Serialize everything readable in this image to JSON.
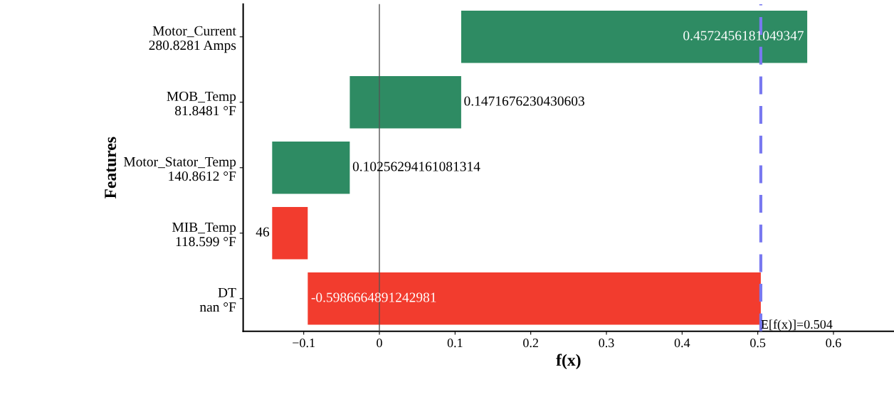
{
  "chart_data": {
    "type": "bar",
    "orientation": "horizontal",
    "xlabel": "f(x)",
    "ylabel": "Features",
    "categories": [
      "Motor_Current\n280.8281 Amps",
      "MOB_Temp\n81.8481 °F",
      "Motor_Stator_Temp\n140.8612 °F",
      "MIB_Temp\n118.599 °F",
      "DT\nnan °F"
    ],
    "values": [
      0.4572456181049347,
      0.1471676230430603,
      0.10256294161081314,
      -0.047,
      -0.5986664891242981
    ],
    "base": [
      0.1081,
      -0.0391,
      -0.1417,
      -0.0947,
      0.504
    ],
    "colors": [
      "#2e8b63",
      "#2e8b63",
      "#2e8b63",
      "#f23c2e",
      "#f23c2e"
    ],
    "value_labels": [
      "0.4572456181049347",
      "0.1471676230430603",
      "0.10256294161081314",
      null,
      "-0.5986664891242981"
    ],
    "annotations": [
      {
        "text": "46",
        "x": -0.1417,
        "y": "MIB_Temp\n118.599 °F"
      }
    ],
    "xlim": [
      -0.18,
      0.68
    ],
    "xticks": [
      {
        "value": -0.1,
        "label": "−0.1"
      },
      0,
      0.1,
      0.2,
      0.3,
      0.4,
      0.5,
      0.6
    ],
    "ref_lines": [
      {
        "axis": "x",
        "value": 0,
        "color": "#555555",
        "line_style": "solid"
      },
      {
        "axis": "x",
        "value": 0.504,
        "label": "E[f(x)]=0.504",
        "color": "#7878f0",
        "line_style": "dashed"
      }
    ],
    "grid": false
  }
}
